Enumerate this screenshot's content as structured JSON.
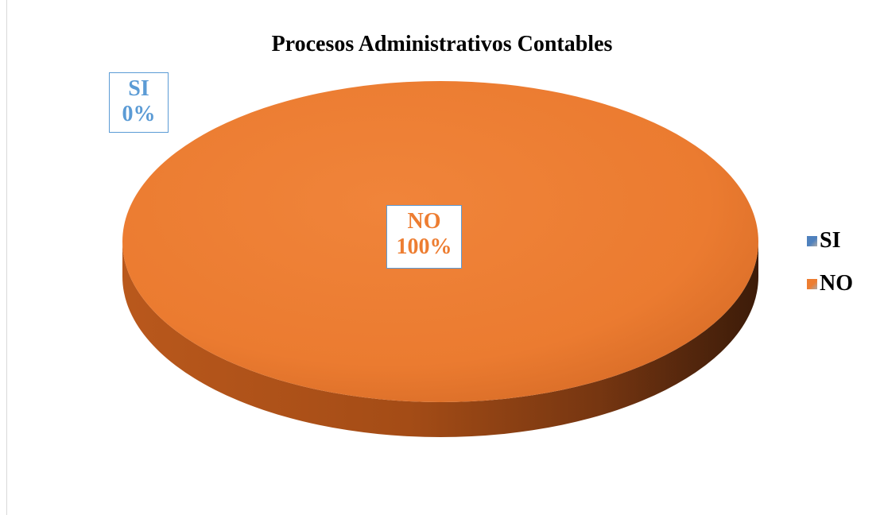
{
  "chart_data": {
    "type": "pie",
    "title": "Procesos Administrativos Contables",
    "categories": [
      "SI",
      "NO"
    ],
    "values": [
      0,
      100
    ],
    "data_labels": [
      {
        "category": "SI",
        "percent": "0%"
      },
      {
        "category": "NO",
        "percent": "100%"
      }
    ],
    "legend": {
      "position": "right",
      "entries": [
        "SI",
        "NO"
      ]
    },
    "colors": {
      "SI": "#4f81bd",
      "NO": "#ed7d31"
    },
    "style": "3d"
  }
}
